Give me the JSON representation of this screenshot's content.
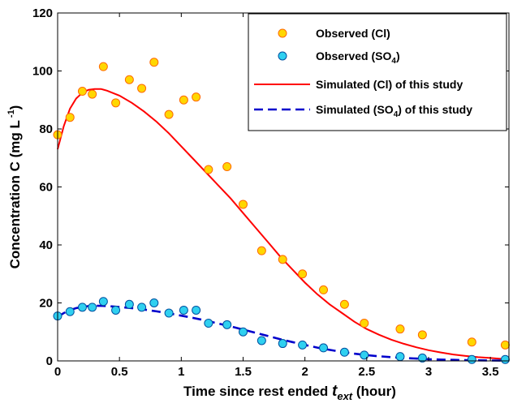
{
  "chart_data": {
    "type": "scatter",
    "xlabel": {
      "text": "Time since rest ended ",
      "var": "t",
      "var_sub": "ext",
      "unit": " (hour)"
    },
    "ylabel": {
      "text": "Concentration C (mg L",
      "sup": " -1",
      "close": ")"
    },
    "xlim": [
      0,
      3.65
    ],
    "ylim": [
      0,
      120
    ],
    "xticks": [
      0,
      0.5,
      1,
      1.5,
      2,
      2.5,
      3,
      3.5
    ],
    "xtick_labels": [
      "0",
      "0.5",
      "1",
      "1.5",
      "2",
      "2.5",
      "3",
      "3.5"
    ],
    "yticks": [
      0,
      20,
      40,
      60,
      80,
      100,
      120
    ],
    "ytick_labels": [
      "0",
      "20",
      "40",
      "60",
      "80",
      "100",
      "120"
    ],
    "grid": false,
    "legend_position": "top-right",
    "legend": [
      {
        "name": "Observed (Cl)",
        "label_parts": [
          "Observed (Cl)"
        ]
      },
      {
        "name": "Observed (SO4)",
        "label_parts": [
          "Observed (SO",
          "4",
          ")"
        ]
      },
      {
        "name": "Simulated (Cl) of this study",
        "label_parts": [
          "Simulated (Cl)  of this study"
        ]
      },
      {
        "name": "Simulated (SO4) of this study",
        "label_parts": [
          "Simulated (SO",
          "4",
          ") of this study"
        ]
      }
    ],
    "series": [
      {
        "name": "Observed (Cl)",
        "kind": "scatter",
        "fill": "#ffd700",
        "stroke": "#ff6a00",
        "x": [
          0.0,
          0.1,
          0.2,
          0.28,
          0.37,
          0.47,
          0.58,
          0.68,
          0.78,
          0.9,
          1.02,
          1.12,
          1.22,
          1.37,
          1.5,
          1.65,
          1.82,
          1.98,
          2.15,
          2.32,
          2.48,
          2.77,
          2.95,
          3.35,
          3.62
        ],
        "y": [
          78,
          84,
          93,
          92,
          101.5,
          89,
          97,
          94,
          103,
          85,
          90,
          91,
          66,
          67,
          54,
          38,
          35,
          30,
          24.5,
          19.5,
          13,
          11,
          9,
          6.5,
          5.5
        ]
      },
      {
        "name": "Observed (SO4)",
        "kind": "scatter",
        "fill": "#2fd0f0",
        "stroke": "#0050a0",
        "x": [
          0.0,
          0.1,
          0.2,
          0.28,
          0.37,
          0.47,
          0.58,
          0.68,
          0.78,
          0.9,
          1.02,
          1.12,
          1.22,
          1.37,
          1.5,
          1.65,
          1.82,
          1.98,
          2.15,
          2.32,
          2.48,
          2.77,
          2.95,
          3.35,
          3.62
        ],
        "y": [
          15.5,
          17,
          18.5,
          18.5,
          20.5,
          17.5,
          19.5,
          18.5,
          20,
          16.5,
          17.5,
          17.5,
          13,
          12.5,
          10,
          7,
          6,
          5.5,
          4.5,
          3,
          2,
          1.5,
          1,
          0.5,
          0.5
        ]
      },
      {
        "name": "Simulated (Cl) of this study",
        "kind": "line",
        "stroke": "#ff0000",
        "dash": "",
        "x": [
          0.0,
          0.05,
          0.1,
          0.15,
          0.2,
          0.25,
          0.3,
          0.35,
          0.4,
          0.5,
          0.6,
          0.7,
          0.8,
          0.9,
          1.0,
          1.1,
          1.2,
          1.3,
          1.4,
          1.5,
          1.6,
          1.7,
          1.8,
          1.9,
          2.0,
          2.1,
          2.2,
          2.3,
          2.4,
          2.5,
          2.6,
          2.7,
          2.8,
          2.9,
          3.0,
          3.1,
          3.2,
          3.3,
          3.4,
          3.5,
          3.62
        ],
        "y": [
          73,
          81,
          87,
          90.5,
          92.5,
          93.5,
          93.8,
          93.8,
          93.2,
          91.5,
          89,
          86,
          82.5,
          78.5,
          74,
          69.5,
          65,
          60.5,
          56,
          51,
          46,
          41,
          36,
          31.5,
          27,
          23,
          19.5,
          16.5,
          13.5,
          11,
          9,
          7.3,
          5.9,
          4.7,
          3.7,
          2.9,
          2.2,
          1.7,
          1.3,
          1.0,
          0.6
        ]
      },
      {
        "name": "Simulated (SO4) of this study",
        "kind": "line",
        "stroke": "#0000cc",
        "dash": "11,6",
        "x": [
          0.0,
          0.05,
          0.1,
          0.15,
          0.2,
          0.25,
          0.3,
          0.35,
          0.4,
          0.5,
          0.6,
          0.7,
          0.8,
          0.9,
          1.0,
          1.1,
          1.2,
          1.3,
          1.4,
          1.5,
          1.6,
          1.7,
          1.8,
          1.9,
          2.0,
          2.1,
          2.2,
          2.3,
          2.4,
          2.5,
          2.6,
          2.7,
          2.8,
          2.9,
          3.0,
          3.1,
          3.2,
          3.3,
          3.4,
          3.5,
          3.62
        ],
        "y": [
          15.2,
          16.5,
          17.5,
          18.2,
          18.6,
          18.9,
          19.0,
          19.0,
          18.9,
          18.6,
          18.2,
          17.7,
          17.1,
          16.4,
          15.6,
          14.8,
          13.9,
          12.9,
          11.9,
          10.8,
          9.7,
          8.6,
          7.5,
          6.5,
          5.5,
          4.6,
          3.8,
          3.1,
          2.5,
          2.0,
          1.6,
          1.3,
          1.0,
          0.8,
          0.6,
          0.45,
          0.35,
          0.25,
          0.2,
          0.15,
          0.1
        ]
      }
    ]
  }
}
